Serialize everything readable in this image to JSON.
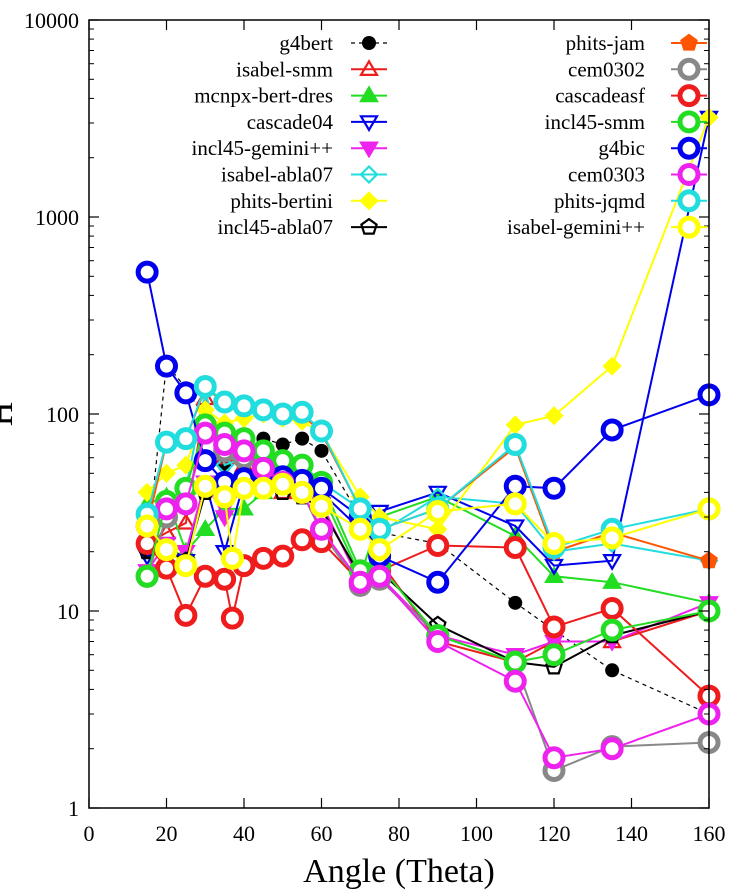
{
  "chart_data": {
    "type": "line",
    "title": "",
    "xlabel": "Angle (Theta)",
    "ylabel": "H",
    "xlim": [
      0,
      160
    ],
    "ylim": [
      1,
      10000
    ],
    "yscale": "log",
    "grid": false,
    "legend_position": "top",
    "x_ticks": [
      "0",
      "20",
      "40",
      "60",
      "80",
      "100",
      "120",
      "140",
      "160"
    ],
    "y_ticks": [
      "1",
      "10",
      "100",
      "1000",
      "10000"
    ],
    "series": [
      {
        "name": "g4bert",
        "color": "#000000",
        "marker": "filled-circle",
        "dash": "4,4",
        "x": [
          15,
          20,
          25,
          30,
          35,
          40,
          45,
          50,
          55,
          60,
          70,
          75,
          90,
          110,
          120,
          135,
          160
        ],
        "y": [
          20,
          180,
          135,
          95,
          55,
          75,
          75,
          70,
          75,
          65,
          30,
          25,
          22,
          11,
          8,
          5,
          3
        ]
      },
      {
        "name": "isabel-smm",
        "color": "#ee1c1c",
        "marker": "open-triangle-up",
        "x": [
          15,
          20,
          25,
          30,
          35,
          40,
          45,
          50,
          55,
          60,
          70,
          75,
          90,
          110,
          120,
          135,
          160
        ],
        "y": [
          22,
          25,
          28,
          120,
          60,
          55,
          45,
          40,
          42,
          35,
          14,
          18,
          7,
          5.5,
          7,
          7,
          10
        ]
      },
      {
        "name": "mcnpx-bert-dres",
        "color": "#22dd22",
        "marker": "filled-triangle-up",
        "x": [
          15,
          20,
          25,
          30,
          35,
          40,
          45,
          50,
          55,
          60,
          70,
          75,
          90,
          110,
          120,
          135,
          160
        ],
        "y": [
          35,
          38,
          20,
          26,
          33,
          33,
          40,
          45,
          50,
          40,
          15,
          30,
          38,
          24,
          15,
          14,
          11
        ]
      },
      {
        "name": "cascade04",
        "color": "#0000ee",
        "marker": "open-triangle-down",
        "x": [
          15,
          20,
          25,
          30,
          35,
          40,
          45,
          50,
          55,
          60,
          70,
          75,
          90,
          110,
          120,
          135,
          160
        ],
        "y": [
          19,
          22,
          18,
          45,
          20,
          45,
          50,
          48,
          45,
          40,
          26,
          32,
          40,
          27,
          17,
          18,
          3200
        ]
      },
      {
        "name": "incl45-gemini++",
        "color": "#ee22ee",
        "marker": "filled-triangle-down",
        "x": [
          15,
          20,
          25,
          30,
          35,
          40,
          45,
          50,
          55,
          60,
          70,
          75,
          90,
          110,
          120,
          135,
          160
        ],
        "y": [
          16,
          22,
          20,
          45,
          30,
          45,
          55,
          45,
          40,
          35,
          14,
          15,
          7.5,
          6,
          7,
          7,
          11
        ]
      },
      {
        "name": "isabel-abla07",
        "color": "#22dddd",
        "marker": "open-diamond",
        "x": [
          15,
          20,
          25,
          30,
          35,
          40,
          45,
          50,
          55,
          60,
          70,
          75,
          90,
          110,
          120,
          135,
          160
        ],
        "y": [
          30,
          36,
          42,
          130,
          55,
          60,
          60,
          58,
          55,
          45,
          33,
          25,
          38,
          35,
          20,
          22,
          18
        ]
      },
      {
        "name": "phits-bertini",
        "color": "#ffff00",
        "marker": "filled-diamond",
        "x": [
          15,
          20,
          25,
          30,
          35,
          40,
          45,
          50,
          55,
          60,
          70,
          75,
          90,
          110,
          120,
          135,
          160
        ],
        "y": [
          40,
          50,
          55,
          105,
          90,
          95,
          100,
          95,
          92,
          80,
          38,
          30,
          26,
          88,
          98,
          175,
          3200
        ]
      },
      {
        "name": "incl45-abla07",
        "color": "#000000",
        "marker": "open-pentagon",
        "x": [
          15,
          20,
          25,
          30,
          35,
          40,
          45,
          50,
          55,
          60,
          70,
          75,
          90,
          110,
          120,
          135,
          160
        ],
        "y": [
          20,
          20,
          18,
          40,
          38,
          42,
          42,
          40,
          38,
          33,
          15,
          16,
          8.5,
          5.5,
          5.2,
          7.5,
          10
        ]
      },
      {
        "name": "phits-jam",
        "color": "#ff5500",
        "marker": "filled-pentagon",
        "x": [
          15,
          20,
          25,
          30,
          35,
          40,
          45,
          50,
          55,
          60,
          70,
          75,
          90,
          110,
          120,
          135,
          160
        ],
        "y": [
          27,
          72,
          75,
          135,
          115,
          110,
          105,
          100,
          100,
          80,
          33,
          26,
          33,
          68,
          20,
          25,
          18
        ]
      },
      {
        "name": "cem0302",
        "color": "#888888",
        "marker": "ring",
        "x": [
          15,
          20,
          25,
          30,
          35,
          40,
          45,
          50,
          55,
          60,
          70,
          75,
          90,
          110,
          120,
          135,
          160
        ],
        "y": [
          15,
          30,
          35,
          85,
          65,
          60,
          50,
          45,
          40,
          25,
          13.5,
          14.5,
          7.5,
          5.5,
          1.55,
          2.05,
          2.15
        ]
      },
      {
        "name": "cascadeasf",
        "color": "#ee1c1c",
        "marker": "ring",
        "x": [
          15,
          20,
          25,
          30,
          35,
          37,
          40,
          45,
          50,
          55,
          60,
          70,
          75,
          90,
          110,
          120,
          135,
          160
        ],
        "y": [
          22,
          16.5,
          9.5,
          15,
          14.5,
          9.2,
          17,
          18.5,
          19,
          23,
          22.5,
          14,
          16,
          21.5,
          21,
          8.3,
          10.3,
          3.7
        ]
      },
      {
        "name": "incl45-smm",
        "color": "#22dd22",
        "marker": "ring",
        "x": [
          15,
          20,
          25,
          30,
          35,
          40,
          45,
          50,
          55,
          60,
          70,
          75,
          90,
          110,
          120,
          135,
          160
        ],
        "y": [
          15,
          36,
          42,
          88,
          80,
          75,
          65,
          58,
          55,
          45,
          16,
          17,
          7.5,
          5.5,
          6,
          8,
          10
        ]
      },
      {
        "name": "g4bic",
        "color": "#0000ee",
        "marker": "ring",
        "x": [
          15,
          20,
          25,
          30,
          35,
          40,
          45,
          50,
          55,
          60,
          70,
          75,
          90,
          110,
          120,
          135,
          160
        ],
        "y": [
          525,
          175,
          128,
          58,
          45,
          47,
          50,
          48,
          46,
          42,
          30,
          19,
          14,
          43,
          42,
          83,
          125
        ]
      },
      {
        "name": "cem0303",
        "color": "#ee22ee",
        "marker": "ring",
        "x": [
          15,
          20,
          25,
          30,
          35,
          40,
          45,
          50,
          55,
          60,
          70,
          75,
          90,
          110,
          120,
          135,
          160
        ],
        "y": [
          27,
          33,
          35,
          80,
          70,
          65,
          53,
          45,
          40,
          26,
          14,
          15,
          7,
          4.4,
          1.8,
          2,
          3
        ]
      },
      {
        "name": "phits-jqmd",
        "color": "#22dddd",
        "marker": "ring",
        "x": [
          15,
          20,
          25,
          30,
          35,
          40,
          45,
          50,
          55,
          60,
          70,
          75,
          90,
          110,
          120,
          135,
          160
        ],
        "y": [
          31,
          72,
          75,
          138,
          115,
          110,
          105,
          100,
          102,
          82,
          33,
          26,
          33,
          70,
          21,
          26,
          33
        ]
      },
      {
        "name": "isabel-gemini++",
        "color": "#ffff00",
        "marker": "ring",
        "x": [
          15,
          20,
          25,
          30,
          35,
          37,
          40,
          45,
          50,
          55,
          60,
          70,
          75,
          90,
          110,
          120,
          135,
          160
        ],
        "y": [
          27,
          20.5,
          17,
          43,
          38,
          18.5,
          42,
          42,
          44,
          40,
          34,
          26,
          20.5,
          32,
          35,
          22,
          23.5,
          33
        ]
      }
    ]
  }
}
